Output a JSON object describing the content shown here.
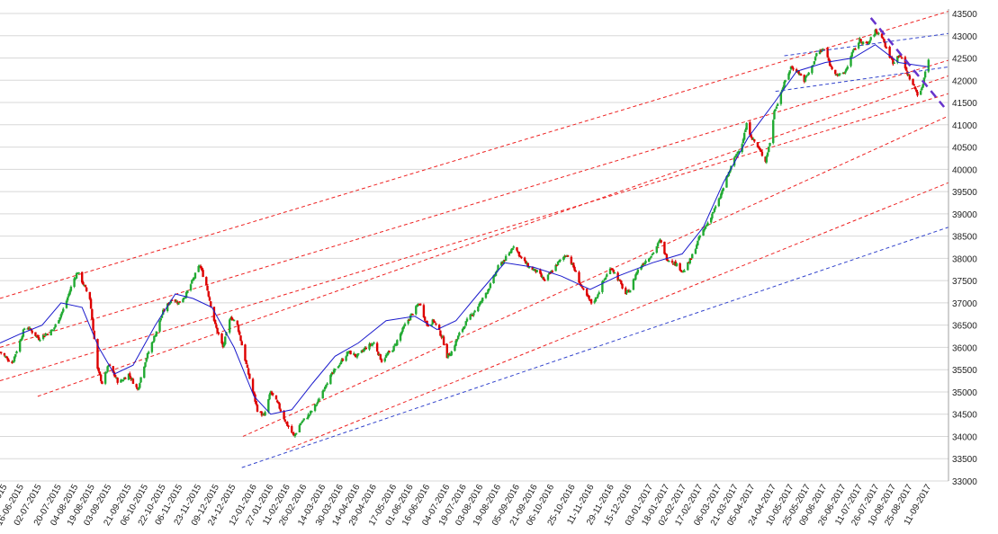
{
  "chart_data": {
    "type": "candlestick",
    "title": "",
    "xlabel": "",
    "ylabel": "",
    "ylim": [
      33000,
      43500
    ],
    "y_ticks": [
      33000,
      33500,
      34000,
      34500,
      35000,
      35500,
      36000,
      36500,
      37000,
      37500,
      38000,
      38500,
      39000,
      39500,
      40000,
      40500,
      41000,
      41500,
      42000,
      42500,
      43000,
      43500
    ],
    "x_range": [
      "2015-05-28",
      "2017-09-29"
    ],
    "x_ticks": [
      "01-06-2015",
      "16-06-2015",
      "02-07-2015",
      "20-07-2015",
      "04-08-2015",
      "19-08-2015",
      "03-09-2015",
      "21-09-2015",
      "06-10-2015",
      "22-10-2015",
      "06-11-2015",
      "23-11-2015",
      "09-12-2015",
      "24-12-2015",
      "12-01-2016",
      "27-01-2016",
      "11-02-2016",
      "26-02-2016",
      "14-03-2016",
      "30-03-2016",
      "14-04-2016",
      "29-04-2016",
      "17-05-2016",
      "01-06-2016",
      "16-06-2016",
      "04-07-2016",
      "19-07-2016",
      "03-08-2016",
      "19-08-2016",
      "05-09-2016",
      "21-09-2016",
      "06-10-2016",
      "25-10-2016",
      "11-11-2016",
      "29-11-2016",
      "15-12-2016",
      "03-01-2017",
      "18-01-2017",
      "02-02-2017",
      "17-02-2017",
      "06-03-2017",
      "21-03-2017",
      "05-04-2017",
      "24-04-2017",
      "10-05-2017",
      "25-05-2017",
      "09-06-2017",
      "26-06-2017",
      "11-07-2017",
      "26-07-2017",
      "10-08-2017",
      "25-08-2017",
      "11-09-2017"
    ],
    "grid": true,
    "legend": "none",
    "colors": {
      "up_candle": "#22aa33",
      "down_candle": "#dd0000",
      "moving_average": "#1a1acc",
      "channel_lines": "#ee2222",
      "support_line": "#3344cc",
      "trend_line_dash": "#6633cc",
      "grid": "#d8d8d8"
    },
    "anchors": [
      {
        "date": "2015-05-28",
        "close": 35900
      },
      {
        "date": "2015-06-08",
        "close": 35650
      },
      {
        "date": "2015-06-20",
        "close": 36500
      },
      {
        "date": "2015-07-02",
        "close": 36200
      },
      {
        "date": "2015-07-15",
        "close": 36400
      },
      {
        "date": "2015-07-25",
        "close": 36900
      },
      {
        "date": "2015-08-02",
        "close": 37500
      },
      {
        "date": "2015-08-06",
        "close": 37700
      },
      {
        "date": "2015-08-17",
        "close": 37100
      },
      {
        "date": "2015-08-24",
        "close": 35500
      },
      {
        "date": "2015-08-28",
        "close": 35200
      },
      {
        "date": "2015-09-03",
        "close": 35600
      },
      {
        "date": "2015-09-12",
        "close": 35200
      },
      {
        "date": "2015-09-21",
        "close": 35400
      },
      {
        "date": "2015-09-29",
        "close": 35050
      },
      {
        "date": "2015-10-06",
        "close": 35700
      },
      {
        "date": "2015-10-15",
        "close": 36300
      },
      {
        "date": "2015-10-22",
        "close": 36800
      },
      {
        "date": "2015-10-30",
        "close": 37100
      },
      {
        "date": "2015-11-05",
        "close": 37000
      },
      {
        "date": "2015-11-12",
        "close": 37200
      },
      {
        "date": "2015-11-24",
        "close": 37850
      },
      {
        "date": "2015-11-30",
        "close": 37400
      },
      {
        "date": "2015-12-08",
        "close": 36500
      },
      {
        "date": "2015-12-15",
        "close": 36000
      },
      {
        "date": "2015-12-22",
        "close": 36700
      },
      {
        "date": "2015-12-28",
        "close": 36500
      },
      {
        "date": "2016-01-06",
        "close": 35500
      },
      {
        "date": "2016-01-15",
        "close": 34600
      },
      {
        "date": "2016-01-21",
        "close": 34450
      },
      {
        "date": "2016-01-27",
        "close": 35000
      },
      {
        "date": "2016-02-03",
        "close": 34700
      },
      {
        "date": "2016-02-10",
        "close": 34300
      },
      {
        "date": "2016-02-17",
        "close": 34000
      },
      {
        "date": "2016-02-23",
        "close": 34300
      },
      {
        "date": "2016-03-02",
        "close": 34500
      },
      {
        "date": "2016-03-10",
        "close": 34800
      },
      {
        "date": "2016-03-17",
        "close": 35200
      },
      {
        "date": "2016-03-28",
        "close": 35600
      },
      {
        "date": "2016-04-06",
        "close": 35900
      },
      {
        "date": "2016-04-14",
        "close": 35800
      },
      {
        "date": "2016-04-22",
        "close": 36000
      },
      {
        "date": "2016-04-29",
        "close": 36100
      },
      {
        "date": "2016-05-06",
        "close": 35700
      },
      {
        "date": "2016-05-17",
        "close": 36000
      },
      {
        "date": "2016-05-27",
        "close": 36500
      },
      {
        "date": "2016-06-01",
        "close": 36700
      },
      {
        "date": "2016-06-09",
        "close": 37000
      },
      {
        "date": "2016-06-16",
        "close": 36500
      },
      {
        "date": "2016-06-22",
        "close": 36600
      },
      {
        "date": "2016-06-30",
        "close": 36200
      },
      {
        "date": "2016-07-04",
        "close": 35800
      },
      {
        "date": "2016-07-08",
        "close": 35900
      },
      {
        "date": "2016-07-15",
        "close": 36300
      },
      {
        "date": "2016-07-22",
        "close": 36600
      },
      {
        "date": "2016-08-03",
        "close": 37000
      },
      {
        "date": "2016-08-12",
        "close": 37400
      },
      {
        "date": "2016-08-19",
        "close": 37800
      },
      {
        "date": "2016-08-29",
        "close": 38100
      },
      {
        "date": "2016-09-02",
        "close": 38300
      },
      {
        "date": "2016-09-09",
        "close": 38000
      },
      {
        "date": "2016-09-16",
        "close": 37800
      },
      {
        "date": "2016-09-23",
        "close": 37700
      },
      {
        "date": "2016-09-30",
        "close": 37500
      },
      {
        "date": "2016-10-06",
        "close": 37700
      },
      {
        "date": "2016-10-12",
        "close": 37900
      },
      {
        "date": "2016-10-20",
        "close": 38100
      },
      {
        "date": "2016-10-26",
        "close": 37800
      },
      {
        "date": "2016-11-03",
        "close": 37300
      },
      {
        "date": "2016-11-11",
        "close": 37000
      },
      {
        "date": "2016-11-15",
        "close": 37100
      },
      {
        "date": "2016-11-22",
        "close": 37500
      },
      {
        "date": "2016-11-29",
        "close": 37800
      },
      {
        "date": "2016-12-06",
        "close": 37500
      },
      {
        "date": "2016-12-12",
        "close": 37200
      },
      {
        "date": "2016-12-16",
        "close": 37300
      },
      {
        "date": "2016-12-22",
        "close": 37700
      },
      {
        "date": "2016-12-28",
        "close": 37900
      },
      {
        "date": "2017-01-05",
        "close": 38100
      },
      {
        "date": "2017-01-12",
        "close": 38400
      },
      {
        "date": "2017-01-18",
        "close": 38000
      },
      {
        "date": "2017-01-25",
        "close": 37900
      },
      {
        "date": "2017-02-02",
        "close": 37700
      },
      {
        "date": "2017-02-09",
        "close": 38000
      },
      {
        "date": "2017-02-17",
        "close": 38500
      },
      {
        "date": "2017-02-24",
        "close": 38800
      },
      {
        "date": "2017-03-06",
        "close": 39300
      },
      {
        "date": "2017-03-13",
        "close": 39800
      },
      {
        "date": "2017-03-21",
        "close": 40300
      },
      {
        "date": "2017-03-27",
        "close": 40600
      },
      {
        "date": "2017-03-31",
        "close": 41000
      },
      {
        "date": "2017-04-05",
        "close": 40700
      },
      {
        "date": "2017-04-10",
        "close": 40500
      },
      {
        "date": "2017-04-17",
        "close": 40200
      },
      {
        "date": "2017-04-21",
        "close": 40600
      },
      {
        "date": "2017-04-25",
        "close": 41300
      },
      {
        "date": "2017-05-02",
        "close": 41800
      },
      {
        "date": "2017-05-10",
        "close": 42300
      },
      {
        "date": "2017-05-16",
        "close": 42200
      },
      {
        "date": "2017-05-22",
        "close": 42000
      },
      {
        "date": "2017-05-29",
        "close": 42300
      },
      {
        "date": "2017-06-02",
        "close": 42600
      },
      {
        "date": "2017-06-09",
        "close": 42700
      },
      {
        "date": "2017-06-15",
        "close": 42300
      },
      {
        "date": "2017-06-22",
        "close": 42100
      },
      {
        "date": "2017-06-28",
        "close": 42200
      },
      {
        "date": "2017-07-04",
        "close": 42600
      },
      {
        "date": "2017-07-11",
        "close": 42900
      },
      {
        "date": "2017-07-18",
        "close": 42800
      },
      {
        "date": "2017-07-25",
        "close": 43100
      },
      {
        "date": "2017-07-31",
        "close": 43000
      },
      {
        "date": "2017-08-04",
        "close": 42700
      },
      {
        "date": "2017-08-10",
        "close": 42400
      },
      {
        "date": "2017-08-16",
        "close": 42600
      },
      {
        "date": "2017-08-22",
        "close": 42200
      },
      {
        "date": "2017-08-28",
        "close": 41900
      },
      {
        "date": "2017-09-01",
        "close": 41700
      },
      {
        "date": "2017-09-05",
        "close": 41800
      },
      {
        "date": "2017-09-08",
        "close": 42200
      },
      {
        "date": "2017-09-11",
        "close": 42500
      }
    ],
    "moving_average": [
      {
        "date": "2015-05-28",
        "value": 36100
      },
      {
        "date": "2015-06-15",
        "value": 36300
      },
      {
        "date": "2015-07-05",
        "value": 36500
      },
      {
        "date": "2015-07-22",
        "value": 37000
      },
      {
        "date": "2015-08-10",
        "value": 36900
      },
      {
        "date": "2015-08-25",
        "value": 36000
      },
      {
        "date": "2015-09-08",
        "value": 35400
      },
      {
        "date": "2015-09-25",
        "value": 35600
      },
      {
        "date": "2015-10-15",
        "value": 36500
      },
      {
        "date": "2015-11-02",
        "value": 37200
      },
      {
        "date": "2015-11-18",
        "value": 37100
      },
      {
        "date": "2015-12-05",
        "value": 36900
      },
      {
        "date": "2015-12-25",
        "value": 36000
      },
      {
        "date": "2016-01-12",
        "value": 34900
      },
      {
        "date": "2016-01-27",
        "value": 34500
      },
      {
        "date": "2016-02-15",
        "value": 34600
      },
      {
        "date": "2016-03-05",
        "value": 35200
      },
      {
        "date": "2016-03-25",
        "value": 35800
      },
      {
        "date": "2016-04-15",
        "value": 36100
      },
      {
        "date": "2016-05-10",
        "value": 36600
      },
      {
        "date": "2016-06-05",
        "value": 36700
      },
      {
        "date": "2016-06-25",
        "value": 36400
      },
      {
        "date": "2016-07-12",
        "value": 36600
      },
      {
        "date": "2016-08-01",
        "value": 37200
      },
      {
        "date": "2016-08-25",
        "value": 37900
      },
      {
        "date": "2016-09-20",
        "value": 37800
      },
      {
        "date": "2016-10-15",
        "value": 37600
      },
      {
        "date": "2016-11-10",
        "value": 37300
      },
      {
        "date": "2016-12-05",
        "value": 37600
      },
      {
        "date": "2017-01-05",
        "value": 37900
      },
      {
        "date": "2017-02-01",
        "value": 38100
      },
      {
        "date": "2017-02-20",
        "value": 38700
      },
      {
        "date": "2017-03-10",
        "value": 39700
      },
      {
        "date": "2017-04-01",
        "value": 40700
      },
      {
        "date": "2017-04-25",
        "value": 41500
      },
      {
        "date": "2017-05-15",
        "value": 42200
      },
      {
        "date": "2017-06-10",
        "value": 42400
      },
      {
        "date": "2017-07-05",
        "value": 42500
      },
      {
        "date": "2017-07-25",
        "value": 42800
      },
      {
        "date": "2017-08-15",
        "value": 42400
      },
      {
        "date": "2017-09-11",
        "value": 42300
      }
    ],
    "channel_lines": [
      {
        "start": {
          "date": "2015-05-28",
          "value": 37100
        },
        "end": {
          "date": "2017-09-29",
          "value": 43550
        }
      },
      {
        "start": {
          "date": "2015-05-28",
          "value": 36000
        },
        "end": {
          "date": "2017-09-29",
          "value": 42450
        }
      },
      {
        "start": {
          "date": "2015-05-28",
          "value": 35250
        },
        "end": {
          "date": "2017-09-29",
          "value": 41700
        }
      },
      {
        "start": {
          "date": "2015-07-01",
          "value": 34900
        },
        "end": {
          "date": "2017-09-29",
          "value": 42100
        }
      },
      {
        "start": {
          "date": "2016-01-02",
          "value": 34000
        },
        "end": {
          "date": "2017-09-29",
          "value": 41200
        }
      },
      {
        "start": {
          "date": "2016-02-10",
          "value": 33700
        },
        "end": {
          "date": "2017-09-29",
          "value": 39700
        }
      }
    ],
    "support_line": {
      "start": {
        "date": "2016-01-01",
        "value": 33300
      },
      "end": {
        "date": "2017-09-29",
        "value": 38700
      }
    },
    "upper_trend_line": {
      "start": {
        "date": "2017-05-04",
        "value": 42550
      },
      "end": {
        "date": "2017-09-29",
        "value": 43050
      }
    },
    "lower_trend_line": {
      "start": {
        "date": "2017-04-26",
        "value": 41750
      },
      "end": {
        "date": "2017-09-29",
        "value": 42300
      }
    },
    "downtrend_line": {
      "start": {
        "date": "2017-07-21",
        "value": 43400
      },
      "end": {
        "date": "2017-09-25",
        "value": 41400
      }
    }
  }
}
